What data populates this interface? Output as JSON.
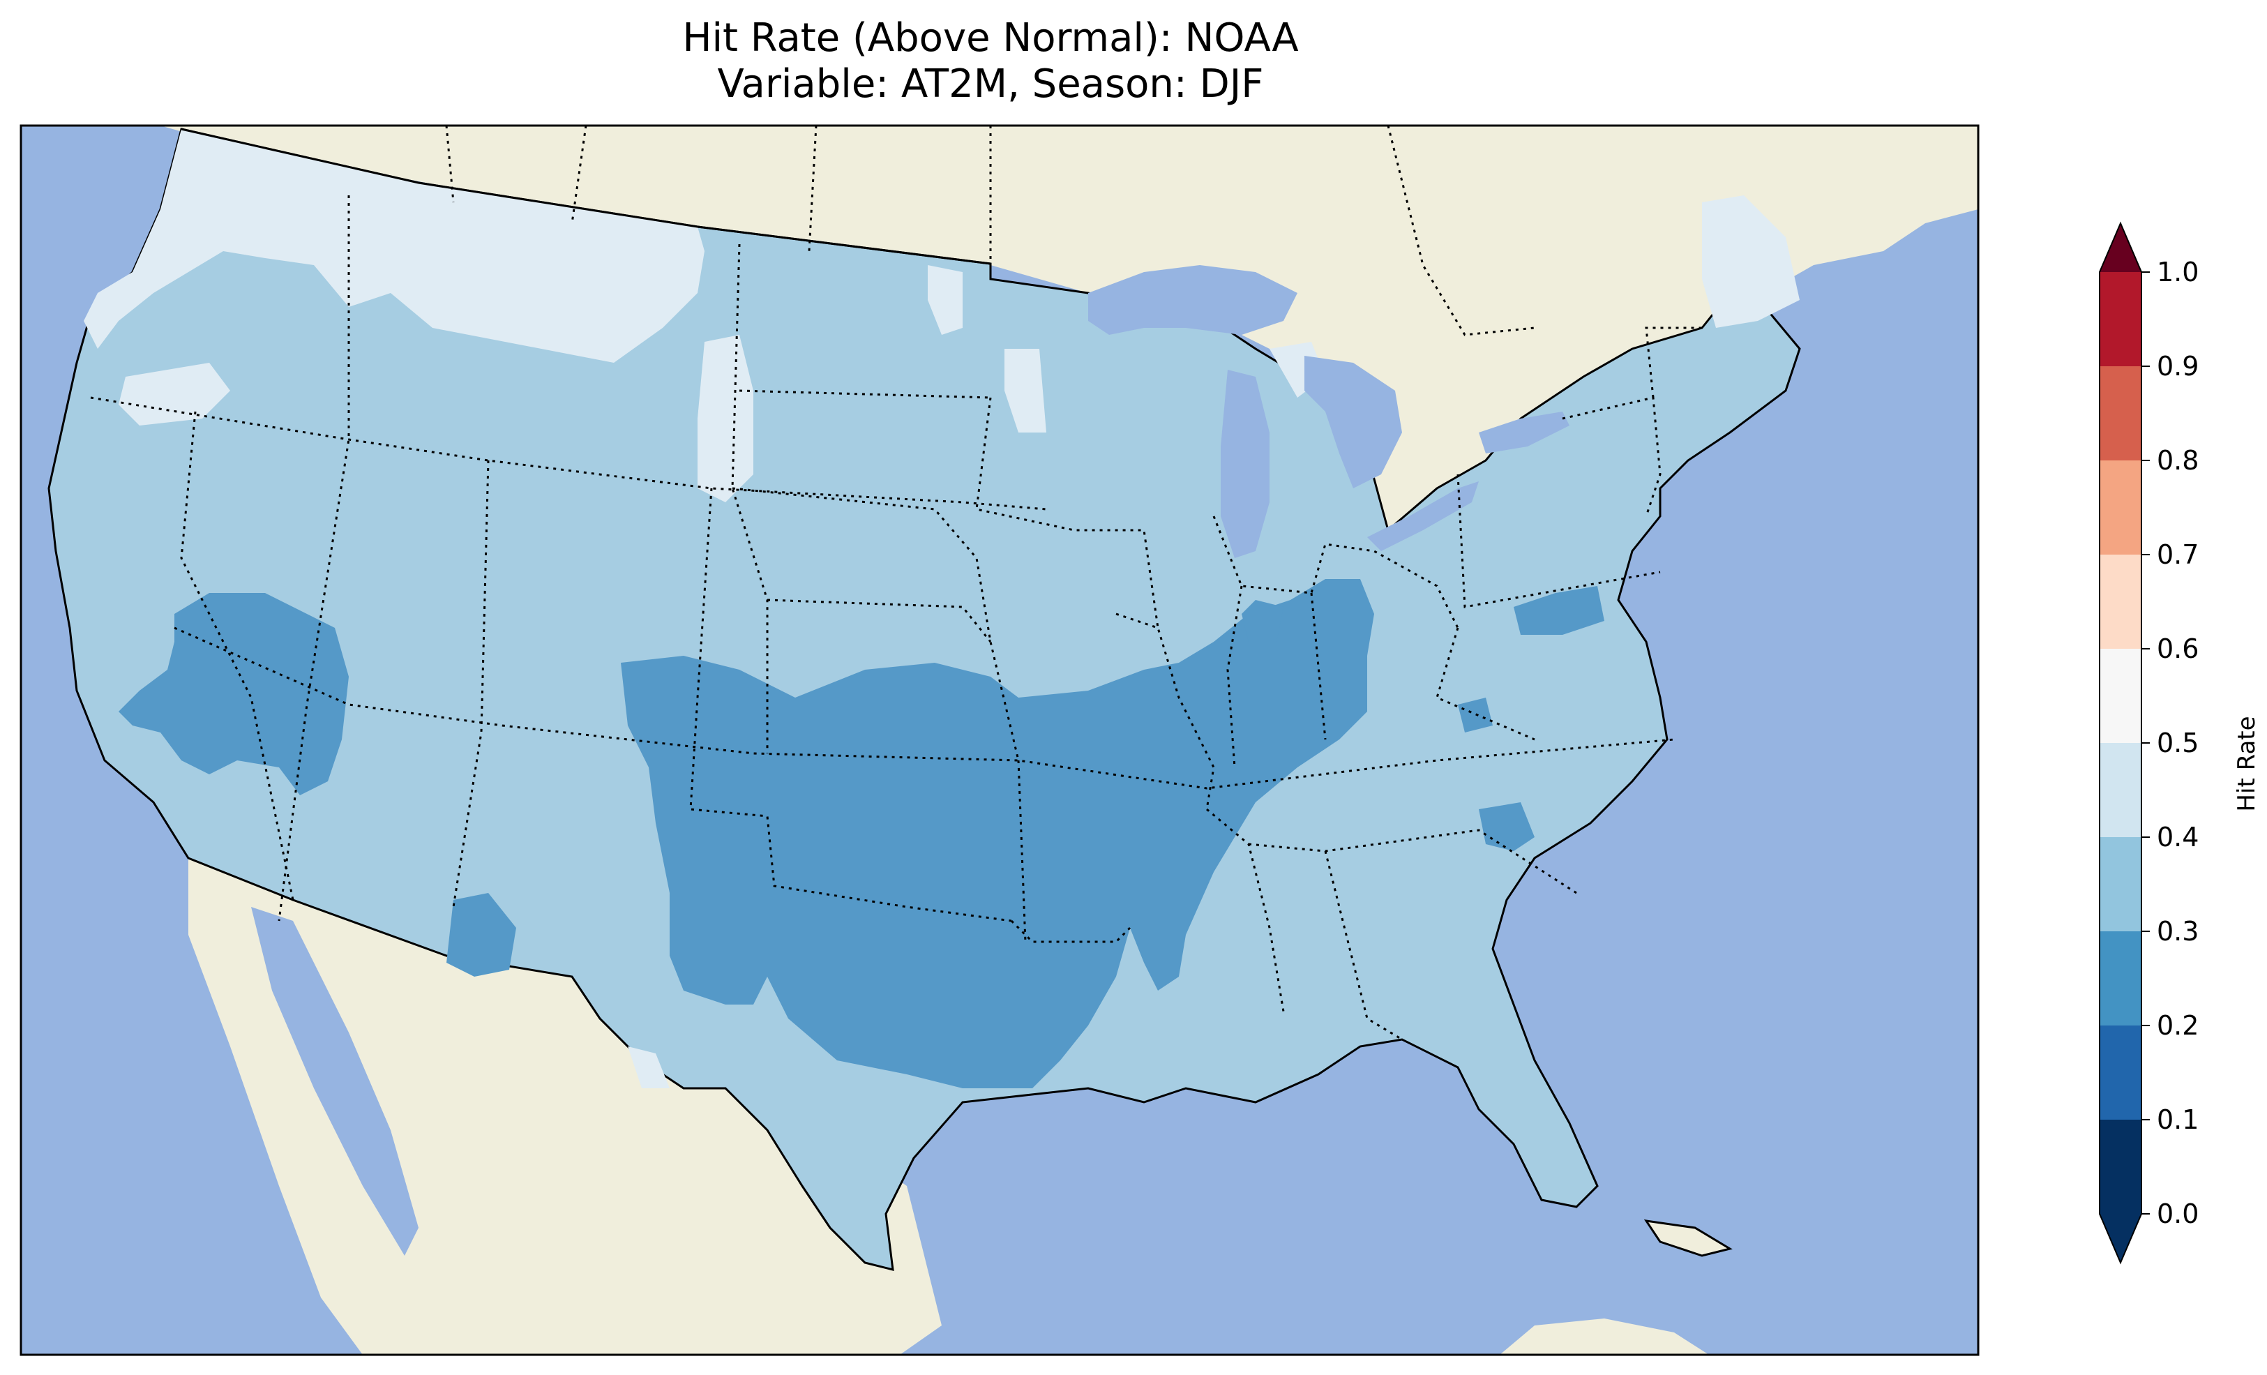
{
  "title": {
    "line1": "Hit Rate (Above Normal): NOAA",
    "line2": "Variable: AT2M, Season: DJF"
  },
  "colors": {
    "ocean": "#96b4e1",
    "land": "#f0eedc",
    "lakes": "#96b4e1",
    "coast": "#000000"
  },
  "map_data": {
    "type": "heatmap",
    "region": "contiguous-united-states",
    "variable": "AT2M",
    "season": "DJF",
    "dominant_class_range": [
      0.3,
      0.4
    ],
    "notable_regions": [
      {
        "area": "southern-plains-texas-oklahoma-arkansas",
        "range": [
          0.2,
          0.3
        ]
      },
      {
        "area": "ohio-valley-kentucky-tennessee",
        "range": [
          0.2,
          0.3
        ]
      },
      {
        "area": "southern-california-nevada",
        "range": [
          0.2,
          0.3
        ]
      },
      {
        "area": "northern-rockies-montana",
        "range": [
          0.4,
          0.5
        ]
      },
      {
        "area": "pacific-northwest",
        "range": [
          0.4,
          0.5
        ]
      },
      {
        "area": "maine",
        "range": [
          0.4,
          0.5
        ]
      }
    ]
  },
  "colorbar": {
    "label": "Hit Rate",
    "ticks": [
      "0.0",
      "0.1",
      "0.2",
      "0.3",
      "0.4",
      "0.5",
      "0.6",
      "0.7",
      "0.8",
      "0.9",
      "1.0"
    ],
    "levels": [
      0.0,
      0.1,
      0.2,
      0.3,
      0.4,
      0.5,
      0.6,
      0.7,
      0.8,
      0.9,
      1.0
    ],
    "colors": [
      "#053061",
      "#2166ac",
      "#4393c3",
      "#92c5de",
      "#d1e5f0",
      "#f7f7f7",
      "#fddbc7",
      "#f4a582",
      "#d6604d",
      "#b2182b",
      "#67001f"
    ],
    "extend": "both"
  }
}
